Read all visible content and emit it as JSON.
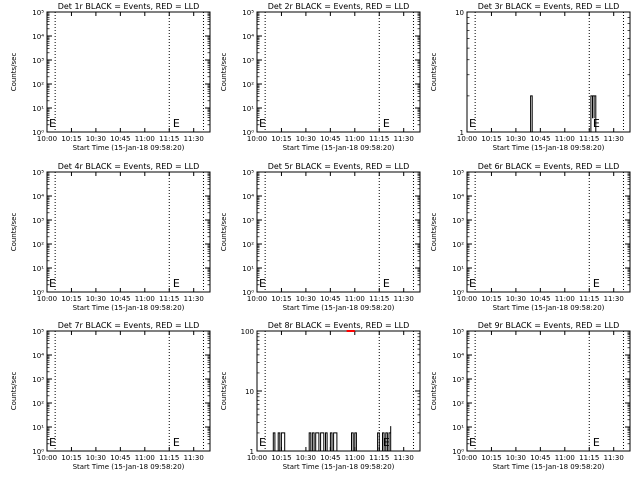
{
  "figure": {
    "background": "#ffffff",
    "ink": "#000000",
    "lld_color": "#ff0000"
  },
  "chart_data": [
    {
      "type": "line",
      "title": "Det 1r BLACK = Events, RED = LLD",
      "xlabel": "Start Time (15-Jan-18 09:58:20)",
      "ylabel": "Counts/sec",
      "xlim": [
        "10:00",
        "11:40"
      ],
      "x_tick_labels": [
        "10:00",
        "10:15",
        "10:30",
        "10:45",
        "11:00",
        "11:15",
        "11:30"
      ],
      "y_scale": "log",
      "ylim": [
        1,
        100000
      ],
      "y_tick_labels": [
        "10⁰",
        "10¹",
        "10²",
        "10³",
        "10⁴",
        "10⁵"
      ],
      "markers": [
        {
          "x": "10:05",
          "style": "dotted"
        },
        {
          "x": "11:15",
          "style": "dotted"
        },
        {
          "x": "11:36",
          "style": "dotted"
        }
      ],
      "glyphs": [
        {
          "x": "10:00",
          "text": "E"
        },
        {
          "x": "11:16",
          "text": "E"
        }
      ],
      "series": [
        {
          "color": "#000000",
          "x": [],
          "values": []
        },
        {
          "color": "#ff0000",
          "x": [],
          "values": []
        }
      ]
    },
    {
      "type": "line",
      "title": "Det 2r BLACK = Events, RED = LLD",
      "xlabel": "Start Time (15-Jan-18 09:58:20)",
      "ylabel": "Counts/sec",
      "xlim": [
        "10:00",
        "11:40"
      ],
      "x_tick_labels": [
        "10:00",
        "10:15",
        "10:30",
        "10:45",
        "11:00",
        "11:15",
        "11:30"
      ],
      "y_scale": "log",
      "ylim": [
        1,
        100000
      ],
      "y_tick_labels": [
        "10⁰",
        "10¹",
        "10²",
        "10³",
        "10⁴",
        "10⁵"
      ],
      "markers": [
        {
          "x": "10:05",
          "style": "dotted"
        },
        {
          "x": "11:15",
          "style": "dotted"
        },
        {
          "x": "11:36",
          "style": "dotted"
        }
      ],
      "glyphs": [
        {
          "x": "10:00",
          "text": "E"
        },
        {
          "x": "11:16",
          "text": "E"
        }
      ],
      "series": [
        {
          "color": "#000000",
          "x": [],
          "values": []
        },
        {
          "color": "#ff0000",
          "x": [],
          "values": []
        }
      ]
    },
    {
      "type": "line",
      "title": "Det 3r BLACK = Events, RED = LLD",
      "xlabel": "Start Time (15-Jan-18 09:58:20)",
      "ylabel": "Counts/sec",
      "xlim": [
        "10:00",
        "11:40"
      ],
      "x_tick_labels": [
        "10:00",
        "10:15",
        "10:30",
        "10:45",
        "11:00",
        "11:15",
        "11:30"
      ],
      "y_scale": "log",
      "ylim": [
        1,
        10
      ],
      "y_tick_labels": [
        "1",
        "10"
      ],
      "markers": [
        {
          "x": "10:05",
          "style": "dotted"
        },
        {
          "x": "11:15",
          "style": "dotted"
        },
        {
          "x": "11:36",
          "style": "dotted"
        }
      ],
      "glyphs": [
        {
          "x": "10:00",
          "text": "E"
        },
        {
          "x": "11:16",
          "text": "E"
        }
      ],
      "series": [
        {
          "color": "#000000",
          "x": [
            "10:39",
            "10:39",
            "10:40",
            "10:40",
            "10:41",
            "10:41",
            "11:16",
            "11:16",
            "11:17",
            "11:17",
            "11:17",
            "11:17",
            "11:18",
            "11:18",
            "11:18",
            "11:18",
            "11:19",
            "11:19"
          ],
          "values": [
            1,
            2,
            2,
            1,
            1,
            1,
            1,
            2,
            2,
            1.3,
            1.3,
            2,
            2,
            1.3,
            1.3,
            2,
            2,
            1
          ]
        },
        {
          "color": "#ff0000",
          "x": [],
          "values": []
        }
      ]
    },
    {
      "type": "line",
      "title": "Det 4r BLACK = Events, RED = LLD",
      "xlabel": "Start Time (15-Jan-18 09:58:20)",
      "ylabel": "Counts/sec",
      "xlim": [
        "10:00",
        "11:40"
      ],
      "x_tick_labels": [
        "10:00",
        "10:15",
        "10:30",
        "10:45",
        "11:00",
        "11:15",
        "11:30"
      ],
      "y_scale": "log",
      "ylim": [
        1,
        100000
      ],
      "y_tick_labels": [
        "10⁰",
        "10¹",
        "10²",
        "10³",
        "10⁴",
        "10⁵"
      ],
      "markers": [
        {
          "x": "10:05",
          "style": "dotted"
        },
        {
          "x": "11:15",
          "style": "dotted"
        },
        {
          "x": "11:36",
          "style": "dotted"
        }
      ],
      "glyphs": [
        {
          "x": "10:00",
          "text": "E"
        },
        {
          "x": "11:16",
          "text": "E"
        }
      ],
      "series": [
        {
          "color": "#000000",
          "x": [],
          "values": []
        },
        {
          "color": "#ff0000",
          "x": [],
          "values": []
        }
      ]
    },
    {
      "type": "line",
      "title": "Det 5r BLACK = Events, RED = LLD",
      "xlabel": "Start Time (15-Jan-18 09:58:20)",
      "ylabel": "Counts/sec",
      "xlim": [
        "10:00",
        "11:40"
      ],
      "x_tick_labels": [
        "10:00",
        "10:15",
        "10:30",
        "10:45",
        "11:00",
        "11:15",
        "11:30"
      ],
      "y_scale": "log",
      "ylim": [
        1,
        100000
      ],
      "y_tick_labels": [
        "10⁰",
        "10¹",
        "10²",
        "10³",
        "10⁴",
        "10⁵"
      ],
      "markers": [
        {
          "x": "10:05",
          "style": "dotted"
        },
        {
          "x": "11:15",
          "style": "dotted"
        },
        {
          "x": "11:36",
          "style": "dotted"
        }
      ],
      "glyphs": [
        {
          "x": "10:00",
          "text": "E"
        },
        {
          "x": "11:16",
          "text": "E"
        }
      ],
      "series": [
        {
          "color": "#000000",
          "x": [],
          "values": []
        },
        {
          "color": "#ff0000",
          "x": [],
          "values": []
        }
      ]
    },
    {
      "type": "line",
      "title": "Det 6r BLACK = Events, RED = LLD",
      "xlabel": "Start Time (15-Jan-18 09:58:20)",
      "ylabel": "Counts/sec",
      "xlim": [
        "10:00",
        "11:40"
      ],
      "x_tick_labels": [
        "10:00",
        "10:15",
        "10:30",
        "10:45",
        "11:00",
        "11:15",
        "11:30"
      ],
      "y_scale": "log",
      "ylim": [
        1,
        100000
      ],
      "y_tick_labels": [
        "10⁰",
        "10¹",
        "10²",
        "10³",
        "10⁴",
        "10⁵"
      ],
      "markers": [
        {
          "x": "10:05",
          "style": "dotted"
        },
        {
          "x": "11:15",
          "style": "dotted"
        },
        {
          "x": "11:36",
          "style": "dotted"
        }
      ],
      "glyphs": [
        {
          "x": "10:00",
          "text": "E"
        },
        {
          "x": "11:16",
          "text": "E"
        }
      ],
      "series": [
        {
          "color": "#000000",
          "x": [],
          "values": []
        },
        {
          "color": "#ff0000",
          "x": [],
          "values": []
        }
      ]
    },
    {
      "type": "line",
      "title": "Det 7r BLACK = Events, RED = LLD",
      "xlabel": "Start Time (15-Jan-18 09:58:20)",
      "ylabel": "Counts/sec",
      "xlim": [
        "10:00",
        "11:40"
      ],
      "x_tick_labels": [
        "10:00",
        "10:15",
        "10:30",
        "10:45",
        "11:00",
        "11:15",
        "11:30"
      ],
      "y_scale": "log",
      "ylim": [
        1,
        100000
      ],
      "y_tick_labels": [
        "10⁰",
        "10¹",
        "10²",
        "10³",
        "10⁴",
        "10⁵"
      ],
      "markers": [
        {
          "x": "10:05",
          "style": "dotted"
        },
        {
          "x": "11:15",
          "style": "dotted"
        },
        {
          "x": "11:36",
          "style": "dotted"
        }
      ],
      "glyphs": [
        {
          "x": "10:00",
          "text": "E"
        },
        {
          "x": "11:16",
          "text": "E"
        }
      ],
      "series": [
        {
          "color": "#000000",
          "x": [],
          "values": []
        },
        {
          "color": "#ff0000",
          "x": [],
          "values": []
        }
      ]
    },
    {
      "type": "line",
      "title": "Det 8r BLACK = Events, RED = LLD",
      "xlabel": "Start Time (15-Jan-18 09:58:20)",
      "ylabel": "Counts/sec",
      "xlim": [
        "10:00",
        "11:40"
      ],
      "x_tick_labels": [
        "10:00",
        "10:15",
        "10:30",
        "10:45",
        "11:00",
        "11:15",
        "11:30"
      ],
      "y_scale": "log",
      "ylim": [
        1,
        100
      ],
      "y_tick_labels": [
        "1",
        "10",
        "100"
      ],
      "markers": [
        {
          "x": "10:05",
          "style": "dotted"
        },
        {
          "x": "11:15",
          "style": "dotted"
        },
        {
          "x": "11:36",
          "style": "dotted"
        }
      ],
      "glyphs": [
        {
          "x": "10:00",
          "text": "E"
        },
        {
          "x": "11:16",
          "text": "E"
        }
      ],
      "series": [
        {
          "color": "#000000",
          "x": [
            "10:00",
            "10:10",
            "10:10",
            "10:11",
            "10:11",
            "10:13",
            "10:13",
            "10:14",
            "10:14",
            "10:15",
            "10:15",
            "10:17",
            "10:17",
            "10:18",
            "10:18",
            "10:32",
            "10:32",
            "10:33",
            "10:33",
            "10:34",
            "10:34",
            "10:35",
            "10:35",
            "10:36",
            "10:36",
            "10:38",
            "10:38",
            "10:39",
            "10:39",
            "10:41",
            "10:41",
            "10:42",
            "10:42",
            "10:43",
            "10:43",
            "10:45",
            "10:45",
            "10:46",
            "10:46",
            "10:47",
            "10:47",
            "10:49",
            "10:49",
            "10:50",
            "10:50",
            "10:58",
            "10:58",
            "10:59",
            "10:59",
            "11:00",
            "11:00",
            "11:01",
            "11:01",
            "11:03",
            "11:03",
            "11:14",
            "11:14",
            "11:15",
            "11:15",
            "11:17",
            "11:17",
            "11:18",
            "11:18",
            "11:19",
            "11:19",
            "11:20",
            "11:20",
            "11:21",
            "11:21",
            "11:22",
            "11:22",
            "11:22",
            "11:22"
          ],
          "values": [
            1,
            1,
            2,
            2,
            1,
            1,
            2,
            2,
            1,
            1,
            2,
            2,
            1,
            1,
            1,
            1,
            2,
            2,
            1,
            1,
            2,
            2,
            1,
            1,
            2,
            2,
            1,
            1,
            2,
            2,
            1,
            1,
            2,
            2,
            1,
            1,
            2,
            2,
            1,
            1,
            2,
            2,
            1,
            1,
            1,
            1,
            2,
            2,
            1,
            1,
            2,
            2,
            1,
            1,
            1,
            1,
            2,
            2,
            1,
            1,
            2,
            2,
            1,
            1,
            2,
            2,
            1,
            1,
            2,
            2,
            1,
            2.6,
            1
          ]
        },
        {
          "color": "#ff0000",
          "x": [
            "10:55",
            "11:00"
          ],
          "values": [
            100,
            100
          ]
        }
      ]
    },
    {
      "type": "line",
      "title": "Det 9r BLACK = Events, RED = LLD",
      "xlabel": "Start Time (15-Jan-18 09:58:20)",
      "ylabel": "Counts/sec",
      "xlim": [
        "10:00",
        "11:40"
      ],
      "x_tick_labels": [
        "10:00",
        "10:15",
        "10:30",
        "10:45",
        "11:00",
        "11:15",
        "11:30"
      ],
      "y_scale": "log",
      "ylim": [
        1,
        100000
      ],
      "y_tick_labels": [
        "10⁰",
        "10¹",
        "10²",
        "10³",
        "10⁴",
        "10⁵"
      ],
      "markers": [
        {
          "x": "10:05",
          "style": "dotted"
        },
        {
          "x": "11:15",
          "style": "dotted"
        },
        {
          "x": "11:36",
          "style": "dotted"
        }
      ],
      "glyphs": [
        {
          "x": "10:00",
          "text": "E"
        },
        {
          "x": "11:16",
          "text": "E"
        }
      ],
      "series": [
        {
          "color": "#000000",
          "x": [],
          "values": []
        },
        {
          "color": "#ff0000",
          "x": [],
          "values": []
        }
      ]
    }
  ]
}
